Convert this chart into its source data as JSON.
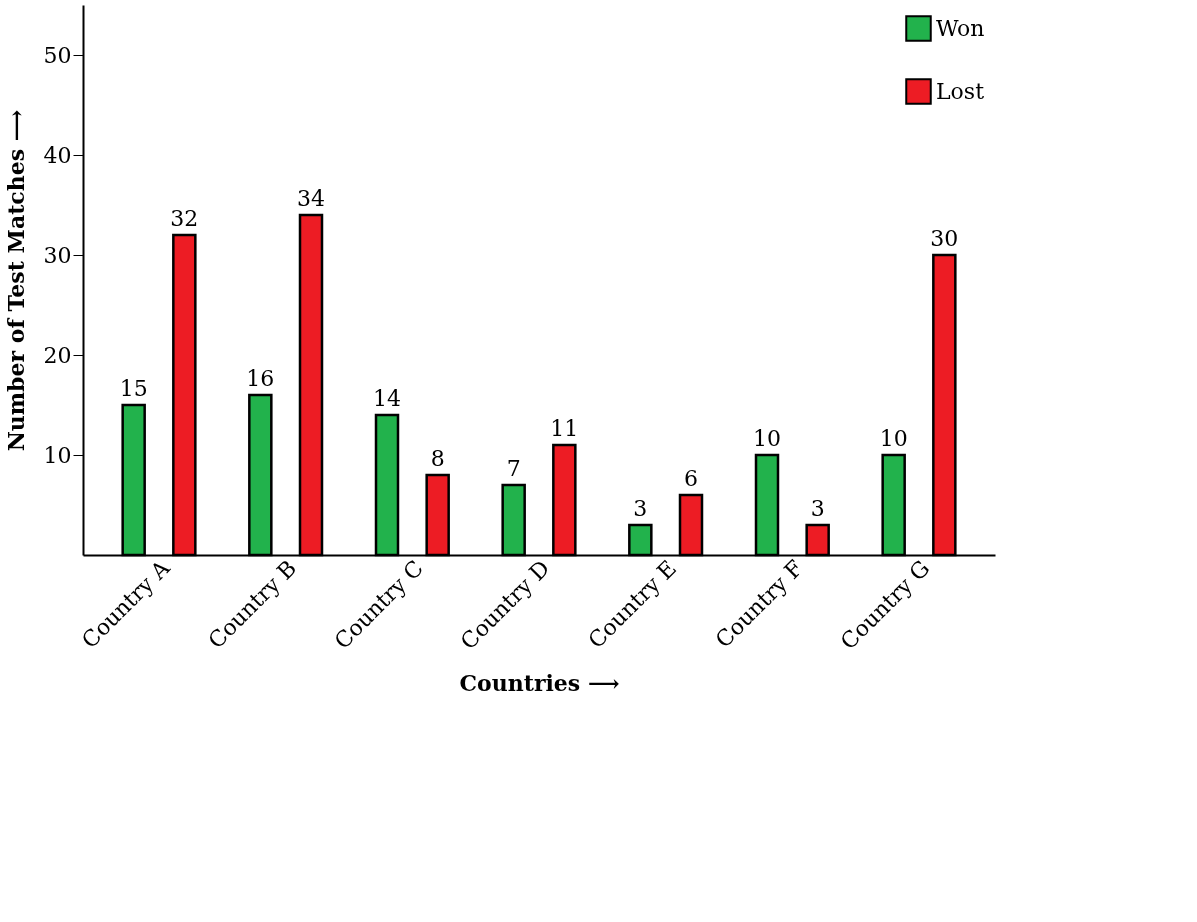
{
  "chart_data": {
    "type": "bar",
    "xlabel": "Countries ⟶",
    "ylabel": "Number of Test Matches ⟶",
    "categories": [
      "Country A",
      "Country B",
      "Country C",
      "Country D",
      "Country E",
      "Country F",
      "Country G"
    ],
    "series": [
      {
        "name": "Won",
        "color": "#22b24c",
        "values": [
          15,
          16,
          14,
          7,
          3,
          10,
          10
        ]
      },
      {
        "name": "Lost",
        "color": "#ed1c24",
        "values": [
          32,
          34,
          8,
          11,
          6,
          3,
          30
        ]
      }
    ],
    "ylim": [
      0,
      55
    ],
    "yticks": [
      10,
      20,
      30,
      40,
      50
    ],
    "data_labels": true,
    "legend": "top right",
    "grid": false
  }
}
